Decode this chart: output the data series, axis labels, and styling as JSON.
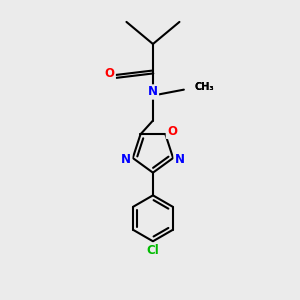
{
  "background_color": "#ebebeb",
  "bond_color": "#000000",
  "nitrogen_color": "#0000ff",
  "oxygen_color": "#ff0000",
  "chlorine_color": "#00bb00",
  "figsize": [
    3.0,
    3.0
  ],
  "dpi": 100,
  "xlim": [
    0,
    10
  ],
  "ylim": [
    0,
    10
  ]
}
